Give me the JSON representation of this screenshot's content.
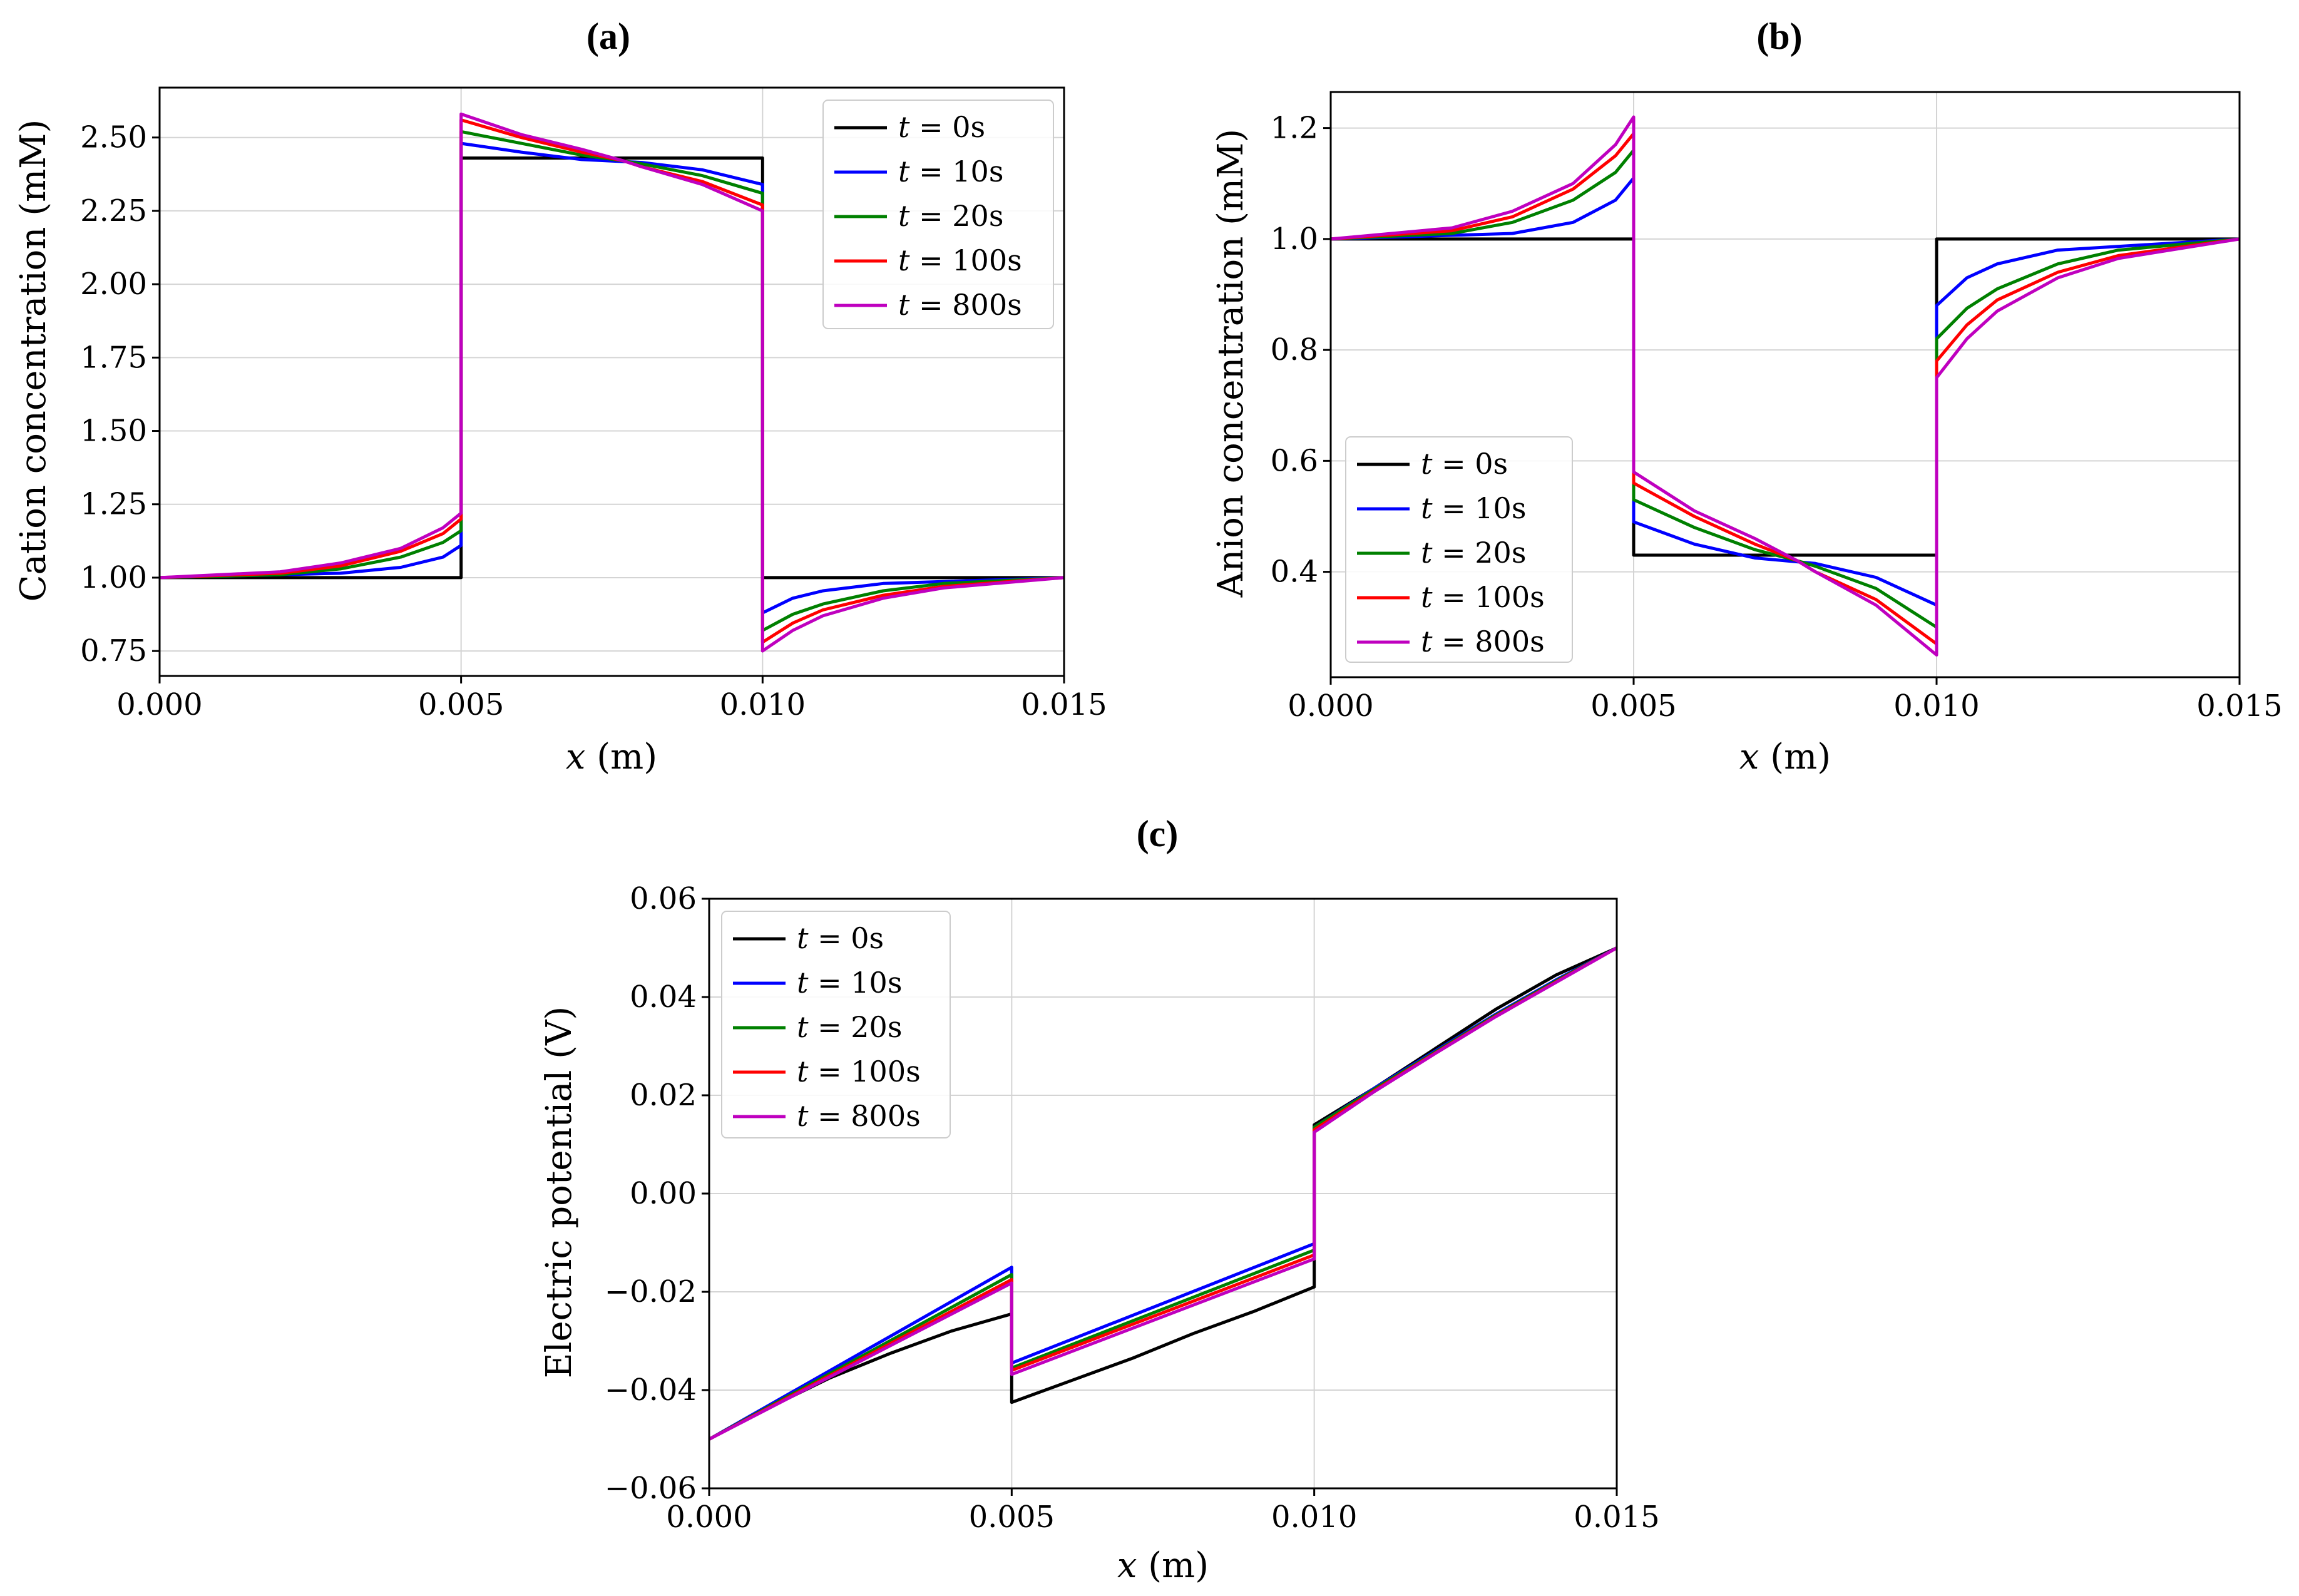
{
  "figure": {
    "legend": [
      {
        "t": "t",
        "rest": " = 0s",
        "color": "#000000"
      },
      {
        "t": "t",
        "rest": " = 10s",
        "color": "#0000ff"
      },
      {
        "t": "t",
        "rest": " = 20s",
        "color": "#008000"
      },
      {
        "t": "t",
        "rest": " = 100s",
        "color": "#ff0000"
      },
      {
        "t": "t",
        "rest": " = 800s",
        "color": "#bf00bf"
      }
    ]
  },
  "chart_data": [
    {
      "type": "line",
      "title": "(a)",
      "xlabel": "x (m)",
      "xlabel_var": "x",
      "xlabel_unit": " (m)",
      "ylabel": "Cation concentration (mM)",
      "xlim": [
        0.0,
        0.015
      ],
      "ylim": [
        0.665,
        2.67
      ],
      "xticks": [
        "0.000",
        "0.005",
        "0.010",
        "0.015"
      ],
      "xtick_values": [
        0.0,
        0.005,
        0.01,
        0.015
      ],
      "yticks": [
        "0.75",
        "1.00",
        "1.25",
        "1.50",
        "1.75",
        "2.00",
        "2.25",
        "2.50"
      ],
      "ytick_values": [
        0.75,
        1.0,
        1.25,
        1.5,
        1.75,
        2.0,
        2.25,
        2.5
      ],
      "legend_position": "upper right",
      "series": [
        {
          "name": "t = 0s",
          "color": "#000000",
          "x": [
            0.0,
            0.005,
            0.005,
            0.01,
            0.01,
            0.015
          ],
          "y": [
            1.0,
            1.0,
            2.43,
            2.43,
            1.0,
            1.0
          ]
        },
        {
          "name": "t = 10s",
          "color": "#0000ff",
          "x": [
            0.0,
            0.003,
            0.004,
            0.0047,
            0.005,
            0.005,
            0.006,
            0.007,
            0.0075,
            0.008,
            0.009,
            0.01,
            0.01,
            0.0105,
            0.011,
            0.012,
            0.015
          ],
          "y": [
            1.0,
            1.015,
            1.035,
            1.07,
            1.11,
            2.48,
            2.45,
            2.425,
            2.42,
            2.415,
            2.39,
            2.34,
            0.88,
            0.93,
            0.955,
            0.98,
            1.0
          ]
        },
        {
          "name": "t = 20s",
          "color": "#008000",
          "x": [
            0.0,
            0.002,
            0.003,
            0.004,
            0.0047,
            0.005,
            0.005,
            0.006,
            0.007,
            0.0077,
            0.008,
            0.009,
            0.01,
            0.01,
            0.0105,
            0.011,
            0.012,
            0.013,
            0.015
          ],
          "y": [
            1.0,
            1.01,
            1.03,
            1.07,
            1.12,
            1.16,
            2.52,
            2.48,
            2.44,
            2.42,
            2.41,
            2.37,
            2.31,
            0.82,
            0.875,
            0.91,
            0.955,
            0.98,
            1.0
          ]
        },
        {
          "name": "t = 100s",
          "color": "#ff0000",
          "x": [
            0.0,
            0.002,
            0.003,
            0.004,
            0.0047,
            0.005,
            0.005,
            0.006,
            0.007,
            0.0077,
            0.008,
            0.009,
            0.01,
            0.01,
            0.0105,
            0.011,
            0.012,
            0.013,
            0.015
          ],
          "y": [
            1.0,
            1.015,
            1.04,
            1.09,
            1.15,
            1.2,
            2.56,
            2.5,
            2.45,
            2.42,
            2.4,
            2.35,
            2.27,
            0.78,
            0.845,
            0.89,
            0.94,
            0.97,
            1.0
          ]
        },
        {
          "name": "t = 800s",
          "color": "#bf00bf",
          "x": [
            0.0,
            0.002,
            0.003,
            0.004,
            0.0047,
            0.005,
            0.005,
            0.006,
            0.007,
            0.0077,
            0.008,
            0.009,
            0.01,
            0.01,
            0.0105,
            0.011,
            0.012,
            0.013,
            0.015
          ],
          "y": [
            1.0,
            1.02,
            1.05,
            1.1,
            1.17,
            1.22,
            2.58,
            2.51,
            2.46,
            2.42,
            2.4,
            2.34,
            2.25,
            0.75,
            0.82,
            0.87,
            0.93,
            0.965,
            1.0
          ]
        }
      ]
    },
    {
      "type": "line",
      "title": "(b)",
      "xlabel": "x (m)",
      "xlabel_var": "x",
      "xlabel_unit": " (m)",
      "ylabel": "Anion concentration (mM)",
      "xlim": [
        0.0,
        0.015
      ],
      "ylim": [
        0.21,
        1.265
      ],
      "xticks": [
        "0.000",
        "0.005",
        "0.010",
        "0.015"
      ],
      "xtick_values": [
        0.0,
        0.005,
        0.01,
        0.015
      ],
      "yticks": [
        "0.4",
        "0.6",
        "0.8",
        "1.0",
        "1.2"
      ],
      "ytick_values": [
        0.4,
        0.6,
        0.8,
        1.0,
        1.2
      ],
      "legend_position": "lower left",
      "series": [
        {
          "name": "t = 0s",
          "color": "#000000",
          "x": [
            0.0,
            0.005,
            0.005,
            0.01,
            0.01,
            0.015
          ],
          "y": [
            1.0,
            1.0,
            0.43,
            0.43,
            1.0,
            1.0
          ]
        },
        {
          "name": "t = 10s",
          "color": "#0000ff",
          "x": [
            0.0,
            0.003,
            0.004,
            0.0047,
            0.005,
            0.005,
            0.006,
            0.007,
            0.0075,
            0.008,
            0.009,
            0.01,
            0.01,
            0.0105,
            0.011,
            0.012,
            0.015
          ],
          "y": [
            1.0,
            1.01,
            1.03,
            1.07,
            1.11,
            0.49,
            0.45,
            0.425,
            0.42,
            0.415,
            0.39,
            0.34,
            0.88,
            0.93,
            0.955,
            0.98,
            1.0
          ]
        },
        {
          "name": "t = 20s",
          "color": "#008000",
          "x": [
            0.0,
            0.002,
            0.003,
            0.004,
            0.0047,
            0.005,
            0.005,
            0.006,
            0.007,
            0.0077,
            0.008,
            0.009,
            0.01,
            0.01,
            0.0105,
            0.011,
            0.012,
            0.013,
            0.015
          ],
          "y": [
            1.0,
            1.01,
            1.03,
            1.07,
            1.12,
            1.16,
            0.53,
            0.48,
            0.44,
            0.42,
            0.41,
            0.37,
            0.3,
            0.82,
            0.875,
            0.91,
            0.955,
            0.98,
            1.0
          ]
        },
        {
          "name": "t = 100s",
          "color": "#ff0000",
          "x": [
            0.0,
            0.002,
            0.003,
            0.004,
            0.0047,
            0.005,
            0.005,
            0.006,
            0.007,
            0.0077,
            0.008,
            0.009,
            0.01,
            0.01,
            0.0105,
            0.011,
            0.012,
            0.013,
            0.015
          ],
          "y": [
            1.0,
            1.015,
            1.04,
            1.09,
            1.15,
            1.19,
            0.56,
            0.5,
            0.45,
            0.42,
            0.4,
            0.35,
            0.27,
            0.78,
            0.845,
            0.89,
            0.94,
            0.97,
            1.0
          ]
        },
        {
          "name": "t = 800s",
          "color": "#bf00bf",
          "x": [
            0.0,
            0.002,
            0.003,
            0.004,
            0.0047,
            0.005,
            0.005,
            0.006,
            0.007,
            0.0077,
            0.008,
            0.009,
            0.01,
            0.01,
            0.0105,
            0.011,
            0.012,
            0.013,
            0.015
          ],
          "y": [
            1.0,
            1.02,
            1.05,
            1.1,
            1.17,
            1.22,
            0.58,
            0.51,
            0.46,
            0.42,
            0.4,
            0.34,
            0.25,
            0.75,
            0.82,
            0.87,
            0.93,
            0.965,
            1.0
          ]
        }
      ]
    },
    {
      "type": "line",
      "title": "(c)",
      "xlabel": "x (m)",
      "xlabel_var": "x",
      "xlabel_unit": " (m)",
      "ylabel": "Electric potential (V)",
      "xlim": [
        0.0,
        0.015
      ],
      "ylim": [
        -0.06,
        0.06
      ],
      "xticks": [
        "0.000",
        "0.005",
        "0.010",
        "0.015"
      ],
      "xtick_values": [
        0.0,
        0.005,
        0.01,
        0.015
      ],
      "yticks": [
        "−0.06",
        "−0.04",
        "−0.02",
        "0.00",
        "0.02",
        "0.04",
        "0.06"
      ],
      "ytick_values": [
        -0.06,
        -0.04,
        -0.02,
        0.0,
        0.02,
        0.04,
        0.06
      ],
      "legend_position": "upper left",
      "series": [
        {
          "name": "t = 0s",
          "color": "#000000",
          "x": [
            0.0,
            0.001,
            0.002,
            0.003,
            0.004,
            0.005,
            0.005,
            0.006,
            0.007,
            0.008,
            0.009,
            0.01,
            0.01,
            0.011,
            0.012,
            0.013,
            0.014,
            0.015
          ],
          "y": [
            -0.05,
            -0.0435,
            -0.0375,
            -0.0325,
            -0.028,
            -0.0245,
            -0.0425,
            -0.038,
            -0.0335,
            -0.0285,
            -0.024,
            -0.019,
            0.014,
            0.0215,
            0.0295,
            0.0375,
            0.0445,
            0.05
          ]
        },
        {
          "name": "t = 10s",
          "color": "#0000ff",
          "x": [
            0.0,
            0.005,
            0.005,
            0.01,
            0.01,
            0.011,
            0.012,
            0.013,
            0.014,
            0.015
          ],
          "y": [
            -0.05,
            -0.015,
            -0.0345,
            -0.0102,
            0.0135,
            0.0215,
            0.029,
            0.0365,
            0.0435,
            0.05
          ]
        },
        {
          "name": "t = 20s",
          "color": "#008000",
          "x": [
            0.0,
            0.005,
            0.005,
            0.01,
            0.01,
            0.011,
            0.012,
            0.013,
            0.014,
            0.015
          ],
          "y": [
            -0.05,
            -0.0165,
            -0.0355,
            -0.0115,
            0.0135,
            0.0213,
            0.0288,
            0.0363,
            0.0433,
            0.05
          ]
        },
        {
          "name": "t = 100s",
          "color": "#ff0000",
          "x": [
            0.0,
            0.005,
            0.005,
            0.01,
            0.01,
            0.011,
            0.012,
            0.013,
            0.014,
            0.015
          ],
          "y": [
            -0.05,
            -0.0175,
            -0.036,
            -0.0125,
            0.013,
            0.021,
            0.0286,
            0.0361,
            0.0431,
            0.05
          ]
        },
        {
          "name": "t = 800s",
          "color": "#bf00bf",
          "x": [
            0.0,
            0.005,
            0.005,
            0.01,
            0.01,
            0.011,
            0.012,
            0.013,
            0.014,
            0.015
          ],
          "y": [
            -0.05,
            -0.0182,
            -0.0368,
            -0.0133,
            0.0125,
            0.0208,
            0.0285,
            0.036,
            0.043,
            0.05
          ]
        }
      ]
    }
  ]
}
